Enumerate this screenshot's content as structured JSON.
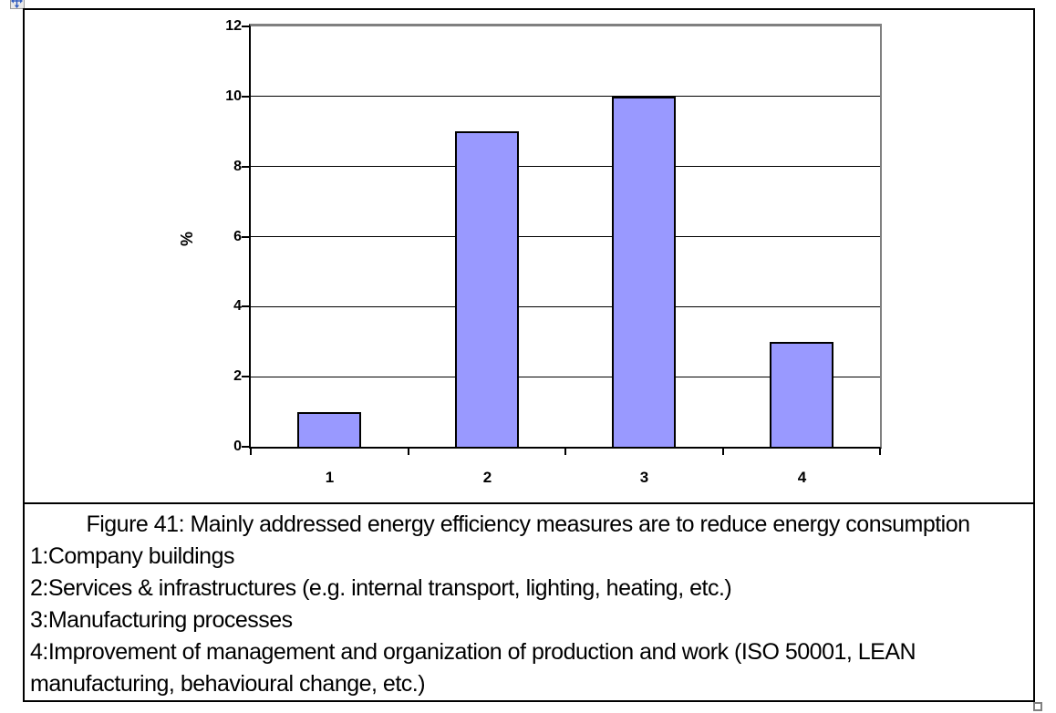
{
  "icons": {
    "move_handle": "move-cross-icon",
    "resize_handle": "resize-square-icon"
  },
  "colors": {
    "bar_fill": "#9999FF",
    "bar_border": "#000000",
    "plot_border": "#808080",
    "axis": "#000000",
    "table_border": "#000000"
  },
  "chart_data": {
    "type": "bar",
    "categories": [
      "1",
      "2",
      "3",
      "4"
    ],
    "values": [
      1,
      9,
      10,
      3
    ],
    "title": "",
    "xlabel": "",
    "ylabel": "%",
    "ylim": [
      0,
      12
    ],
    "yticks": [
      0,
      2,
      4,
      6,
      8,
      10,
      12
    ],
    "grid": true,
    "legend": false
  },
  "caption": {
    "title_line": "Figure 41: Mainly addressed energy efficiency measures are to reduce energy consumption",
    "items": [
      "1:Company buildings",
      "2:Services & infrastructures (e.g. internal transport, lighting, heating, etc.)",
      "3:Manufacturing processes",
      "4:Improvement of management and organization of production and work (ISO 50001, LEAN manufacturing, behavioural change, etc.)"
    ]
  }
}
